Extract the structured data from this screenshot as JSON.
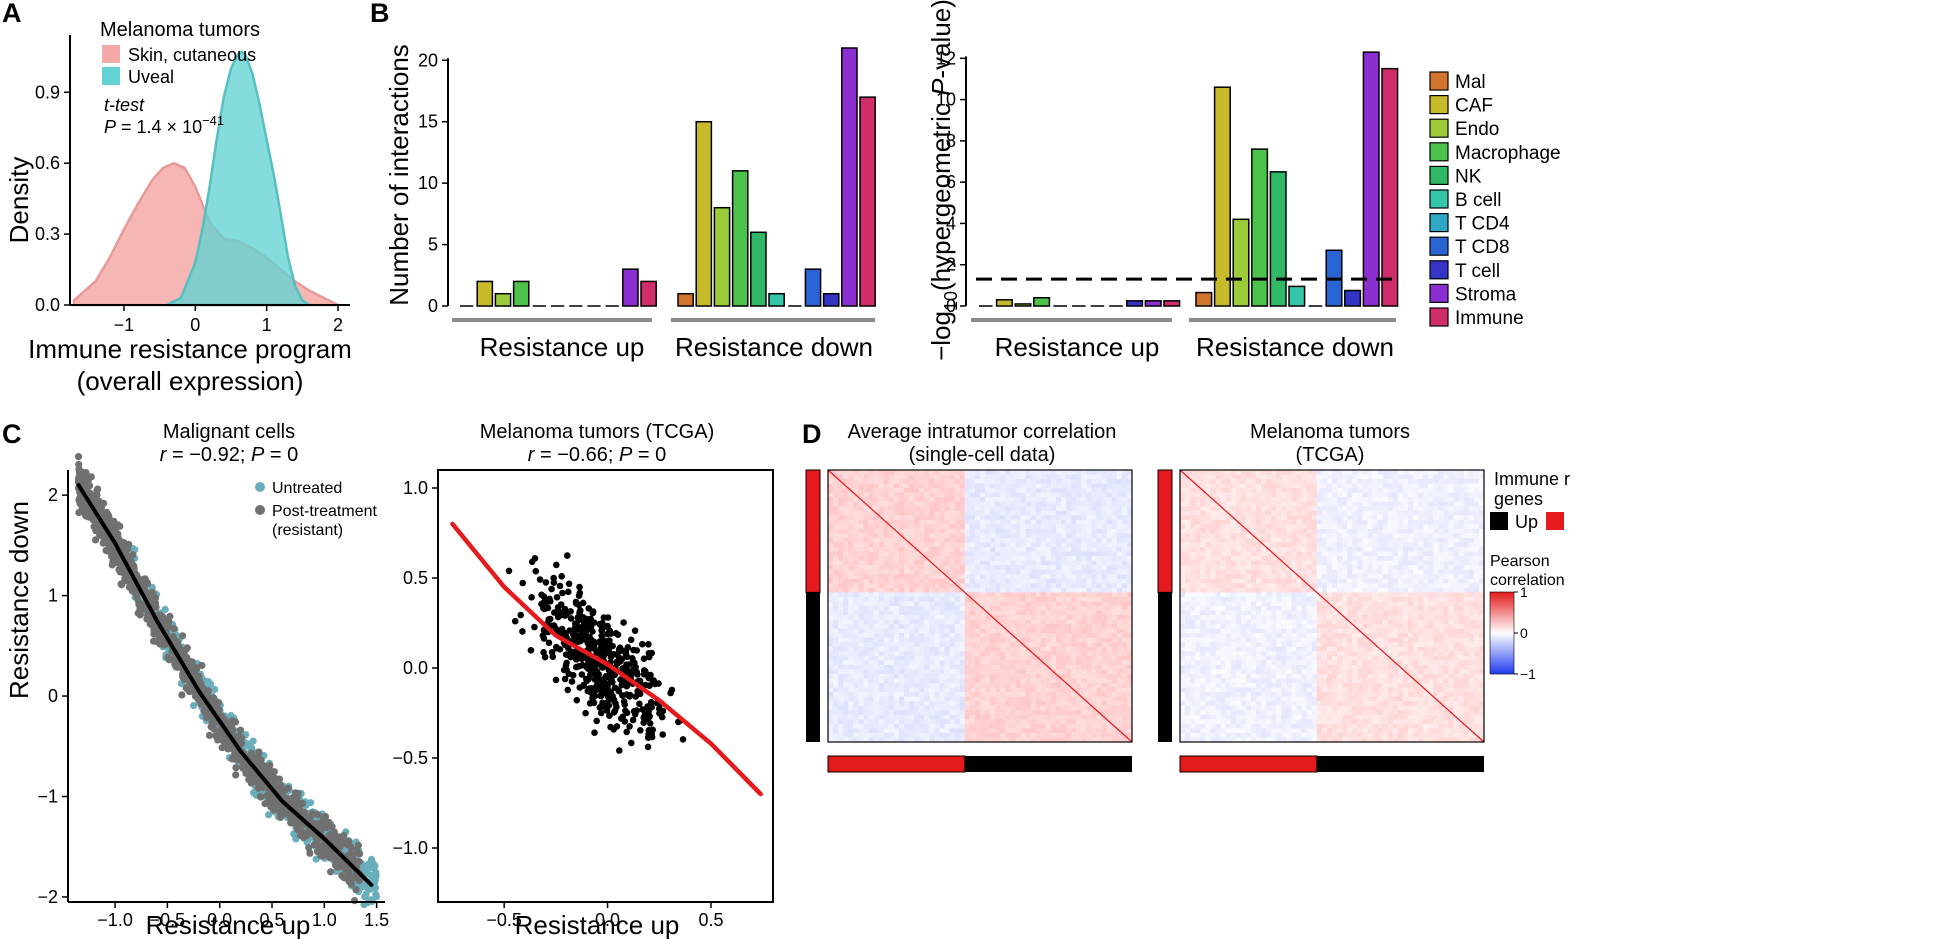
{
  "panel_letters": {
    "A": "A",
    "B": "B",
    "C": "C",
    "D": "D"
  },
  "panelA": {
    "legend_title": "Melanoma tumors",
    "legend": [
      {
        "label": "Skin, cutaneous",
        "color": "#f4a9a6"
      },
      {
        "label": "Uveal",
        "color": "#63d2d4"
      }
    ],
    "test_label": "t-test",
    "p_prefix": "P",
    "p_text": " = 1.4 × 10",
    "p_exp": "−41",
    "ylabel": "Density",
    "xlabel_line1": "Immune resistance program",
    "xlabel_line2": "(overall expression)"
  },
  "panelB": {
    "group_labels": [
      "Resistance up",
      "Resistance down"
    ],
    "ylabel_left": "Number of interactions",
    "ylabel_right_prefix": "−log",
    "ylabel_right_sub": "10",
    "ylabel_right_mid": "(hypergeometric ",
    "ylabel_right_italic": "P",
    "ylabel_right_suffix": "-value)",
    "legend": [
      {
        "label": "Mal",
        "color": "#d2752c"
      },
      {
        "label": "CAF",
        "color": "#c8bb2b"
      },
      {
        "label": "Endo",
        "color": "#9ccc3a"
      },
      {
        "label": "Macrophage",
        "color": "#4cc24b"
      },
      {
        "label": "NK",
        "color": "#2fb866"
      },
      {
        "label": "B cell",
        "color": "#35c6a9"
      },
      {
        "label": "T CD4",
        "color": "#2fa7c6"
      },
      {
        "label": "T CD8",
        "color": "#2a63d3"
      },
      {
        "label": "T cell",
        "color": "#3434c6"
      },
      {
        "label": "Stroma",
        "color": "#8b2fd0"
      },
      {
        "label": "Immune",
        "color": "#cf2e6b"
      }
    ]
  },
  "panelC": {
    "left_title": "Malignant cells",
    "left_stat_r": "r",
    "left_stat_rest": " = −0.92; ",
    "left_stat_p": "P",
    "left_stat_tail": " = 0",
    "right_title": "Melanoma tumors (TCGA)",
    "right_stat_r": "r",
    "right_stat_rest": " = −0.66; ",
    "right_stat_p": "P",
    "right_stat_tail": " = 0",
    "ylabel": "Resistance down",
    "xlabel": "Resistance up",
    "legend_untreated": "Untreated",
    "legend_post1": "Post-treatment",
    "legend_post2": "(resistant)"
  },
  "panelD": {
    "left_title1": "Average intratumor correlation",
    "left_title2": "(single-cell data)",
    "right_title1": "Melanoma tumors",
    "right_title2": "(TCGA)",
    "legend_title1": "Immune r",
    "legend_title2": "genes",
    "legend_up": "Up",
    "corr_title1": "Pearson",
    "corr_title2": "correlation",
    "corr_ticks": [
      "1",
      "0",
      "−1"
    ]
  },
  "chart_data": [
    {
      "type": "area",
      "id": "A",
      "xlabel": "Immune resistance program (overall expression)",
      "ylabel": "Density",
      "xlim": [
        -1.7,
        2.0
      ],
      "ylim": [
        0,
        1.1
      ],
      "xticks": [
        "−1",
        "0",
        "1",
        "2"
      ],
      "xtick_values": [
        -1,
        0,
        1,
        2
      ],
      "yticks": [
        "0.0",
        "0.3",
        "0.6",
        "0.9"
      ],
      "ytick_values": [
        0,
        0.3,
        0.6,
        0.9
      ],
      "series": [
        {
          "name": "Skin, cutaneous",
          "x": [
            -1.7,
            -1.4,
            -1.2,
            -1.0,
            -0.8,
            -0.6,
            -0.45,
            -0.3,
            -0.15,
            0.0,
            0.2,
            0.4,
            0.6,
            0.8,
            1.0,
            1.2,
            1.4,
            1.6,
            1.8,
            2.0
          ],
          "y": [
            0.02,
            0.1,
            0.2,
            0.32,
            0.43,
            0.53,
            0.58,
            0.6,
            0.58,
            0.5,
            0.35,
            0.28,
            0.27,
            0.24,
            0.2,
            0.15,
            0.1,
            0.06,
            0.03,
            0.0
          ]
        },
        {
          "name": "Uveal",
          "x": [
            -0.4,
            -0.2,
            0.0,
            0.1,
            0.2,
            0.3,
            0.4,
            0.5,
            0.6,
            0.65,
            0.7,
            0.8,
            0.9,
            1.0,
            1.1,
            1.2,
            1.3,
            1.4,
            1.5,
            1.6
          ],
          "y": [
            0.0,
            0.03,
            0.18,
            0.32,
            0.5,
            0.7,
            0.88,
            1.0,
            1.06,
            1.07,
            1.06,
            0.98,
            0.85,
            0.7,
            0.55,
            0.38,
            0.2,
            0.08,
            0.02,
            0.0
          ]
        }
      ]
    },
    {
      "type": "bar",
      "id": "B-left",
      "ylabel": "Number of interactions",
      "ylim": [
        0,
        21
      ],
      "yticks": [
        "0",
        "5",
        "10",
        "15",
        "20"
      ],
      "ytick_values": [
        0,
        5,
        10,
        15,
        20
      ],
      "groups": [
        "Resistance up",
        "Resistance down"
      ],
      "categories": [
        "Mal",
        "CAF",
        "Endo",
        "Macrophage",
        "NK",
        "B cell",
        "T CD4",
        "T CD8",
        "T cell",
        "Stroma",
        "Immune"
      ],
      "series": [
        {
          "group": "Resistance up",
          "values": [
            0,
            2,
            1,
            2,
            0,
            0,
            0,
            0,
            0,
            3,
            2
          ]
        },
        {
          "group": "Resistance down",
          "values": [
            1,
            15,
            8,
            11,
            6,
            1,
            0,
            3,
            1,
            21,
            17
          ]
        }
      ]
    },
    {
      "type": "bar",
      "id": "B-right",
      "ylabel": "−log10(hypergeometric P-value)",
      "ylim": [
        0,
        12.5
      ],
      "yticks": [
        "0",
        "2",
        "4",
        "6",
        "8",
        "10",
        "12"
      ],
      "ytick_values": [
        0,
        2,
        4,
        6,
        8,
        10,
        12
      ],
      "threshold": 1.3,
      "groups": [
        "Resistance up",
        "Resistance down"
      ],
      "categories": [
        "Mal",
        "CAF",
        "Endo",
        "Macrophage",
        "NK",
        "B cell",
        "T CD4",
        "T CD8",
        "T cell",
        "Stroma",
        "Immune"
      ],
      "series": [
        {
          "group": "Resistance up",
          "values": [
            0,
            0.3,
            0.1,
            0.4,
            0,
            0,
            0,
            0,
            0.25,
            0.25,
            0.25
          ]
        },
        {
          "group": "Resistance down",
          "values": [
            0.65,
            10.6,
            4.2,
            7.6,
            6.5,
            0.95,
            0,
            2.7,
            0.75,
            12.3,
            11.5
          ]
        }
      ]
    },
    {
      "type": "scatter",
      "id": "C-left",
      "title": "Malignant cells",
      "xlabel": "Resistance up",
      "ylabel": "Resistance down",
      "xlim": [
        -1.45,
        1.58
      ],
      "ylim": [
        -2.05,
        2.25
      ],
      "xticks": [
        "−1.0",
        "−0.5",
        "0.0",
        "0.5",
        "1.0",
        "1.5"
      ],
      "xtick_values": [
        -1,
        -0.5,
        0,
        0.5,
        1,
        1.5
      ],
      "yticks": [
        "−2",
        "−1",
        "0",
        "1",
        "2"
      ],
      "ytick_values": [
        -2,
        -1,
        0,
        1,
        2
      ],
      "series": [
        {
          "name": "Untreated",
          "color": "#6aaebb"
        },
        {
          "name": "Post-treatment (resistant)",
          "color": "#707070"
        }
      ],
      "trend_x": [
        -1.35,
        -1.0,
        -0.6,
        -0.2,
        0.2,
        0.6,
        1.0,
        1.45
      ],
      "trend_y": [
        2.1,
        1.52,
        0.75,
        0.05,
        -0.55,
        -1.05,
        -1.42,
        -1.88
      ]
    },
    {
      "type": "scatter",
      "id": "C-right",
      "title": "Melanoma tumors (TCGA)",
      "xlabel": "Resistance up",
      "xlim": [
        -0.82,
        0.8
      ],
      "ylim": [
        -1.3,
        1.1
      ],
      "xticks": [
        "−0.5",
        "0.0",
        "0.5"
      ],
      "xtick_values": [
        -0.5,
        0,
        0.5
      ],
      "yticks": [
        "1.0",
        "0.5",
        "0.0",
        "−0.5",
        "−1.0"
      ],
      "ytick_values": [
        1,
        0.5,
        0,
        -0.5,
        -1
      ],
      "trend_x": [
        -0.75,
        -0.5,
        -0.25,
        0.0,
        0.25,
        0.5,
        0.74
      ],
      "trend_y": [
        0.8,
        0.45,
        0.18,
        0.02,
        -0.18,
        -0.42,
        -0.7
      ]
    },
    {
      "type": "heatmap",
      "id": "D-left",
      "title": "Average intratumor correlation (single-cell data)",
      "clim": [
        -1,
        1
      ]
    },
    {
      "type": "heatmap",
      "id": "D-right",
      "title": "Melanoma tumors (TCGA)",
      "clim": [
        -1,
        1
      ]
    }
  ]
}
